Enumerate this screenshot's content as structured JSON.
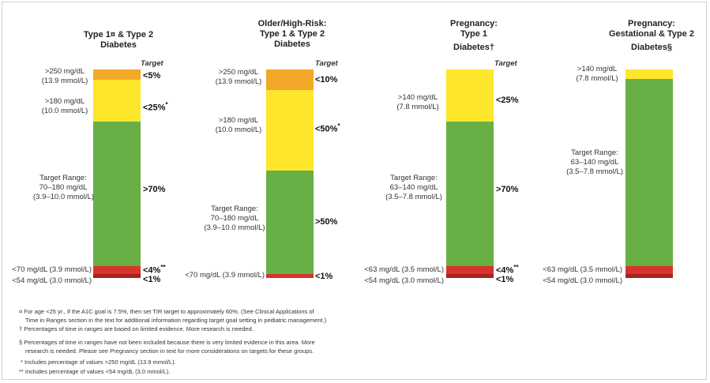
{
  "colors": {
    "orange": "#f3a829",
    "yellow": "#fde62b",
    "green": "#68af45",
    "red": "#d8332c",
    "darkred": "#a8201f"
  },
  "target_header": "Target",
  "panels": [
    {
      "title_lines": [
        "Type 1¤ & Type 2",
        "Diabetes"
      ],
      "labels": [
        [
          ">250 mg/dL",
          "(13.9 mmol/L)"
        ],
        [
          ">180 mg/dL",
          "(10.0 mmol/L)"
        ],
        [
          "Target Range:",
          "70–180 mg/dL",
          "(3.9–10.0 mmol/L)"
        ],
        [
          "<70 mg/dL (3.9 mmol/L)"
        ],
        [
          "<54 mg/dL (3.0 mmol/L)"
        ]
      ],
      "targets": [
        "<5%",
        "<25%*",
        ">70%",
        "<4%**",
        "<1%"
      ]
    },
    {
      "title_lines": [
        "Older/High-Risk:",
        "Type 1 & Type 2",
        "Diabetes"
      ],
      "labels": [
        [
          ">250 mg/dL",
          "(13.9 mmol/L)"
        ],
        [
          ">180 mg/dL",
          "(10.0 mmol/L)"
        ],
        [
          "Target Range:",
          "70–180 mg/dL",
          "(3.9–10.0 mmol/L)"
        ],
        [
          "<70 mg/dL (3.9 mmol/L)"
        ]
      ],
      "targets": [
        "<10%",
        "<50%*",
        ">50%",
        "<1%"
      ]
    },
    {
      "title_lines": [
        "Pregnancy:",
        "Type 1",
        "Diabetes†"
      ],
      "labels": [
        [
          ">140 mg/dL",
          "(7.8 mmol/L)"
        ],
        [
          "Target Range:",
          "63–140 mg/dL",
          "(3.5–7.8 mmol/L)"
        ],
        [
          "<63 mg/dL (3.5 mmol/L)"
        ],
        [
          "<54 mg/dL (3.0 mmol/L)"
        ]
      ],
      "targets": [
        "<25%",
        ">70%",
        "<4%**",
        "<1%"
      ]
    },
    {
      "title_lines": [
        "Pregnancy:",
        "Gestational & Type 2",
        "Diabetes§"
      ],
      "labels": [
        [
          ">140 mg/dL",
          "(7.8 mmol/L)"
        ],
        [
          "Target Range:",
          "63–140 mg/dL",
          "(3.5–7.8 mmol/L)"
        ],
        [
          "<63 mg/dL (3.5 mmol/L)"
        ],
        [
          "<54 mg/dL (3.0 mmol/L)"
        ]
      ],
      "targets": []
    }
  ],
  "footnotes": {
    "n1a": "¤ For age <25 yr., if the A1C goal is 7.5%, then set TIR target to approximately 60%. (See Clinical Applications of",
    "n1b": "Time in Ranges section in the text for additional information regarding target goal setting in pediatric management.)",
    "n2": "† Percentages of time in ranges are based on limited evidence. More research is needed.",
    "n3a": "§ Percentages of time in ranges have not been included because there is very limited evidence in this area. More",
    "n3b": "research is needed. Please see Pregnancy section in text for more considerations on targets for these groups.",
    "n4": "* Includes percentage of values >250 mg/dL (13.9 mmol/L).",
    "n5": "** Includes percentage of values <54 mg/dL (3.0 mmol/L)."
  }
}
